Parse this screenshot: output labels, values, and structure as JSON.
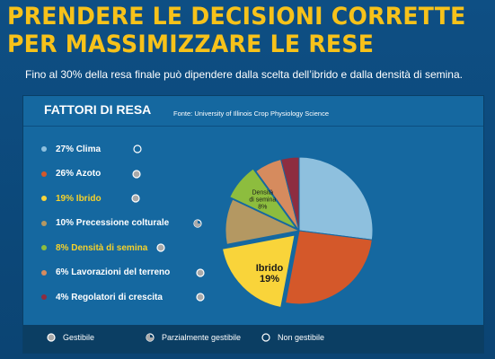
{
  "headline": {
    "line1": "PRENDERE LE DECISIONI CORRETTE",
    "line2": "PER MASSIMIZZARE LE RESE"
  },
  "subtitle": "Fino al 30% della resa finale può dipendere dalla scelta dell’ibrido e dalla densità di semina.",
  "panel": {
    "title": "FATTORI DI RESA",
    "source": "Fonte: University of Illinois Crop Physiology Science"
  },
  "key": {
    "manageable": "Gestibile",
    "partial": "Parzialmente gestibile",
    "not_manageable": "Non gestibile"
  },
  "chart_data": {
    "type": "pie",
    "title": "FATTORI DI RESA",
    "slices": [
      {
        "label": "27% Clima",
        "name": "Clima",
        "value": 27,
        "color": "#8ec0de",
        "management": "not_manageable",
        "highlight": false
      },
      {
        "label": "26% Azoto",
        "name": "Azoto",
        "value": 26,
        "color": "#d4582a",
        "management": "manageable",
        "highlight": false
      },
      {
        "label": "19% Ibrido",
        "name": "Ibrido",
        "value": 19,
        "color": "#f9d43a",
        "management": "manageable",
        "highlight": true,
        "pie_text": [
          "Ibrido",
          "19%"
        ]
      },
      {
        "label": "10% Precessione colturale",
        "name": "Precessione colturale",
        "value": 10,
        "color": "#b49862",
        "management": "partial",
        "highlight": false
      },
      {
        "label": "8% Densità di semina",
        "name": "Densità di semina",
        "value": 8,
        "color": "#8dbd3e",
        "management": "manageable",
        "highlight": true,
        "pie_text": [
          "Densità",
          "di semina",
          "8%"
        ]
      },
      {
        "label": "6% Lavorazioni del terreno",
        "name": "Lavorazioni del terreno",
        "value": 6,
        "color": "#d68b5e",
        "management": "manageable",
        "highlight": false
      },
      {
        "label": "4% Regolatori di crescita",
        "name": "Regolatori di crescita",
        "value": 4,
        "color": "#8d2d40",
        "management": "manageable",
        "highlight": false
      }
    ]
  }
}
